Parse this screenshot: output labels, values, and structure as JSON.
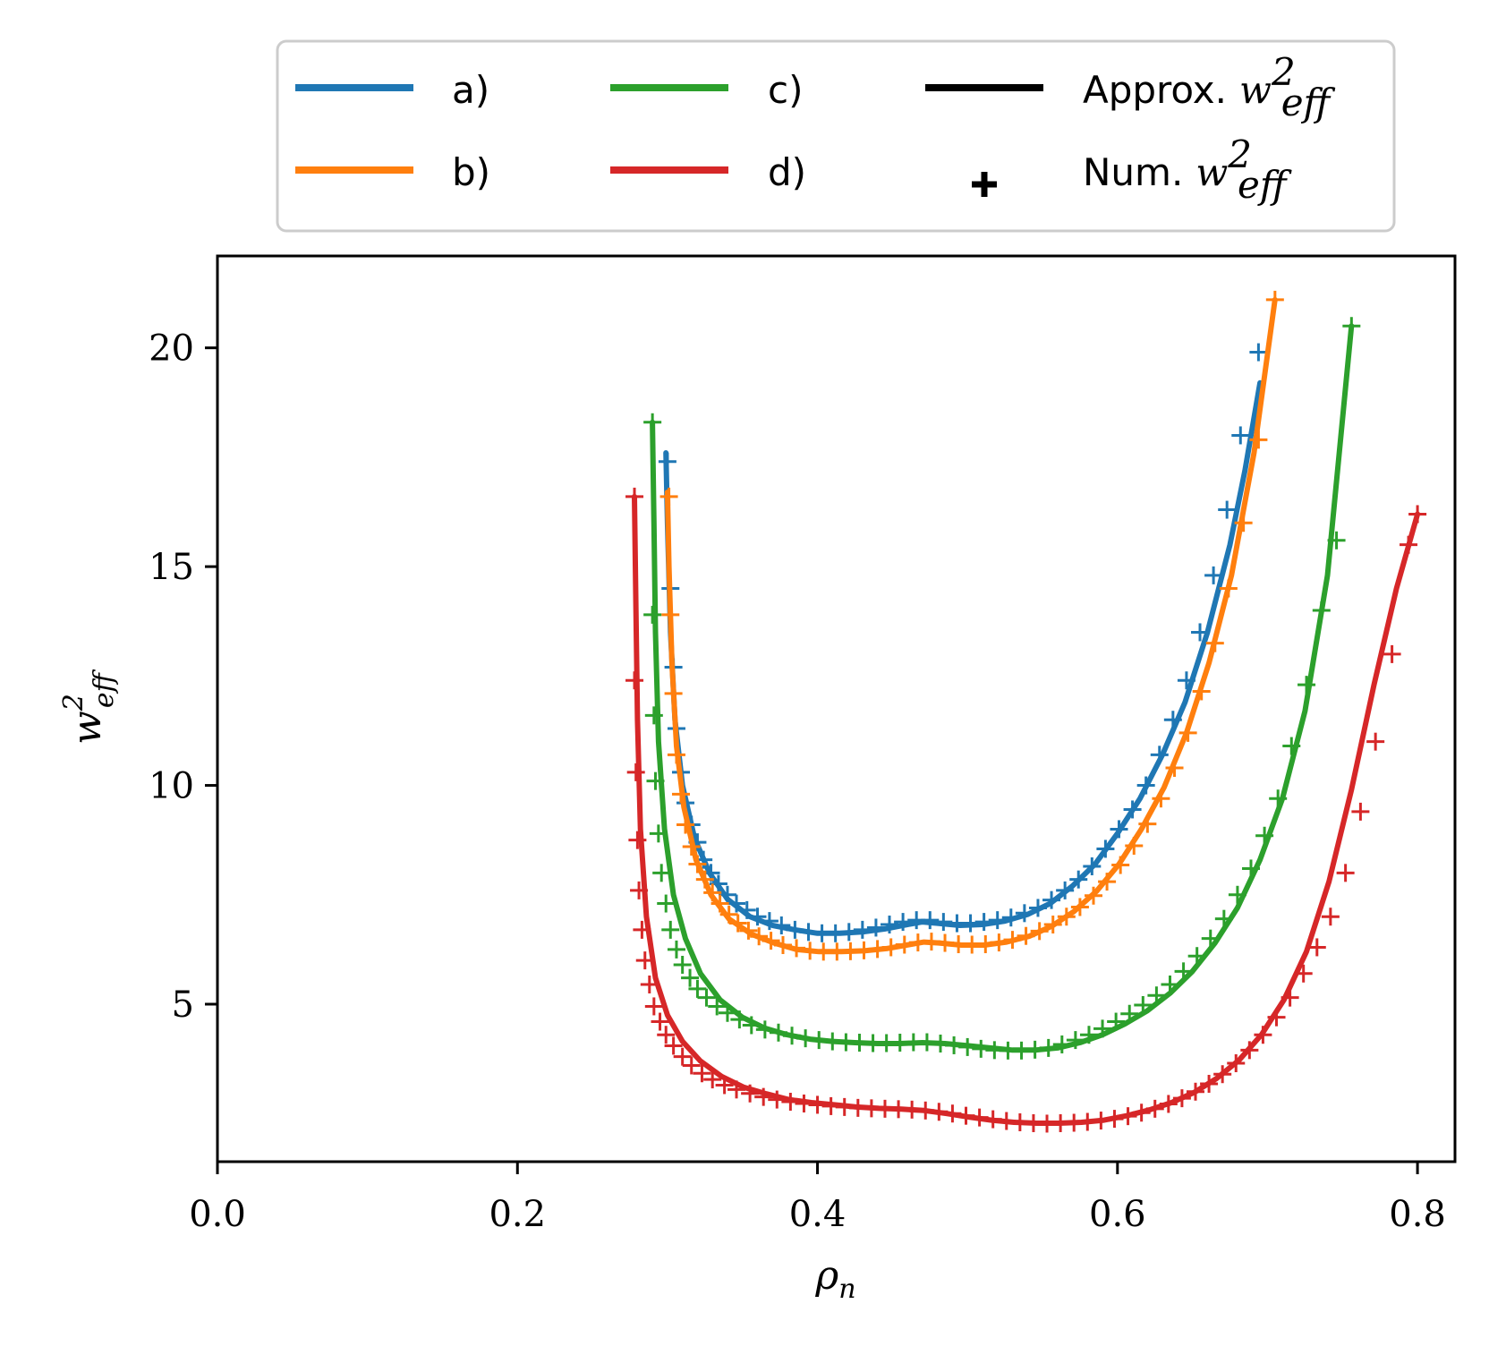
{
  "chart_data": {
    "type": "line",
    "xlabel": "ρ",
    "xlabel_sub": "n",
    "ylabel": "w",
    "ylabel_sup": "2",
    "ylabel_sub": "eff",
    "xlim": [
      0.0,
      0.825
    ],
    "ylim": [
      1.4,
      22.1
    ],
    "xticks": [
      0.0,
      0.2,
      0.4,
      0.6,
      0.8
    ],
    "xtick_labels": [
      "0.0",
      "0.2",
      "0.4",
      "0.6",
      "0.8"
    ],
    "yticks": [
      5,
      10,
      15,
      20
    ],
    "ytick_labels": [
      "5",
      "10",
      "15",
      "20"
    ],
    "grid": false,
    "legend": {
      "placement": "top-center-outside",
      "entries": [
        {
          "label": "a)",
          "color": "#1f77b4",
          "kind": "line"
        },
        {
          "label": "b)",
          "color": "#ff7f0e",
          "kind": "line"
        },
        {
          "label": "c)",
          "color": "#2ca02c",
          "kind": "line"
        },
        {
          "label": "d)",
          "color": "#d62728",
          "kind": "line"
        },
        {
          "label": "Approx.",
          "math": "w",
          "sup": "2",
          "sub": "eff",
          "color": "#000000",
          "kind": "line"
        },
        {
          "label": "Num.",
          "math": "w",
          "sup": "2",
          "sub": "eff",
          "color": "#000000",
          "kind": "marker"
        }
      ]
    },
    "series": [
      {
        "name": "a)",
        "color": "#1f77b4",
        "line": {
          "x": [
            0.299,
            0.3,
            0.302,
            0.305,
            0.31,
            0.318,
            0.328,
            0.34,
            0.355,
            0.37,
            0.385,
            0.4,
            0.415,
            0.43,
            0.445,
            0.46,
            0.47,
            0.48,
            0.495,
            0.51,
            0.525,
            0.54,
            0.555,
            0.57,
            0.585,
            0.6,
            0.615,
            0.63,
            0.645,
            0.66,
            0.675,
            0.685,
            0.695
          ],
          "y": [
            17.6,
            16.0,
            13.5,
            11.5,
            10.0,
            8.8,
            8.0,
            7.4,
            7.0,
            6.8,
            6.7,
            6.62,
            6.62,
            6.65,
            6.72,
            6.82,
            6.88,
            6.85,
            6.8,
            6.82,
            6.9,
            7.05,
            7.3,
            7.7,
            8.2,
            8.9,
            9.7,
            10.7,
            11.9,
            13.5,
            15.5,
            17.2,
            19.2
          ]
        },
        "markers": {
          "x": [
            0.3,
            0.302,
            0.304,
            0.306,
            0.309,
            0.312,
            0.316,
            0.32,
            0.324,
            0.329,
            0.334,
            0.34,
            0.346,
            0.353,
            0.36,
            0.368,
            0.376,
            0.385,
            0.394,
            0.403,
            0.412,
            0.421,
            0.43,
            0.439,
            0.448,
            0.457,
            0.466,
            0.475,
            0.484,
            0.493,
            0.502,
            0.511,
            0.52,
            0.529,
            0.538,
            0.547,
            0.556,
            0.565,
            0.574,
            0.583,
            0.592,
            0.601,
            0.61,
            0.619,
            0.628,
            0.637,
            0.646,
            0.655,
            0.664,
            0.673,
            0.682,
            0.694
          ],
          "y": [
            17.4,
            14.5,
            12.7,
            11.3,
            10.3,
            9.6,
            9.1,
            8.7,
            8.3,
            8.0,
            7.75,
            7.5,
            7.3,
            7.15,
            7.0,
            6.9,
            6.8,
            6.7,
            6.65,
            6.62,
            6.62,
            6.65,
            6.7,
            6.75,
            6.82,
            6.88,
            6.92,
            6.92,
            6.88,
            6.85,
            6.85,
            6.88,
            6.92,
            6.98,
            7.08,
            7.2,
            7.38,
            7.6,
            7.85,
            8.15,
            8.55,
            9.0,
            9.45,
            10.0,
            10.7,
            11.5,
            12.4,
            13.5,
            14.8,
            16.3,
            18.0,
            19.9
          ]
        }
      },
      {
        "name": "b)",
        "color": "#ff7f0e",
        "line": {
          "x": [
            0.3,
            0.301,
            0.303,
            0.306,
            0.311,
            0.319,
            0.329,
            0.341,
            0.356,
            0.371,
            0.386,
            0.401,
            0.416,
            0.431,
            0.446,
            0.461,
            0.471,
            0.481,
            0.496,
            0.511,
            0.526,
            0.541,
            0.556,
            0.571,
            0.586,
            0.601,
            0.616,
            0.631,
            0.646,
            0.661,
            0.676,
            0.691,
            0.705
          ],
          "y": [
            16.7,
            15.0,
            12.8,
            10.9,
            9.5,
            8.3,
            7.5,
            6.95,
            6.6,
            6.4,
            6.25,
            6.2,
            6.2,
            6.22,
            6.27,
            6.36,
            6.42,
            6.4,
            6.35,
            6.35,
            6.42,
            6.55,
            6.78,
            7.12,
            7.58,
            8.2,
            9.0,
            9.95,
            11.2,
            12.8,
            14.8,
            17.6,
            21.1
          ]
        },
        "markers": {
          "x": [
            0.301,
            0.302,
            0.304,
            0.306,
            0.309,
            0.312,
            0.316,
            0.32,
            0.325,
            0.33,
            0.335,
            0.341,
            0.347,
            0.354,
            0.361,
            0.369,
            0.377,
            0.386,
            0.395,
            0.404,
            0.413,
            0.422,
            0.431,
            0.44,
            0.449,
            0.458,
            0.467,
            0.476,
            0.485,
            0.494,
            0.503,
            0.512,
            0.521,
            0.53,
            0.539,
            0.548,
            0.557,
            0.566,
            0.575,
            0.584,
            0.593,
            0.602,
            0.611,
            0.62,
            0.629,
            0.638,
            0.647,
            0.656,
            0.665,
            0.674,
            0.684,
            0.694,
            0.705
          ],
          "y": [
            16.6,
            13.9,
            12.1,
            10.7,
            9.8,
            9.1,
            8.6,
            8.2,
            7.85,
            7.55,
            7.3,
            7.05,
            6.85,
            6.68,
            6.55,
            6.45,
            6.35,
            6.28,
            6.22,
            6.2,
            6.2,
            6.21,
            6.23,
            6.26,
            6.3,
            6.36,
            6.41,
            6.43,
            6.4,
            6.37,
            6.36,
            6.37,
            6.41,
            6.47,
            6.56,
            6.67,
            6.82,
            7.0,
            7.22,
            7.48,
            7.8,
            8.18,
            8.62,
            9.12,
            9.7,
            10.4,
            11.2,
            12.15,
            13.25,
            14.5,
            16.0,
            17.9,
            21.1
          ]
        }
      },
      {
        "name": "c)",
        "color": "#2ca02c",
        "line": {
          "x": [
            0.29,
            0.291,
            0.292,
            0.294,
            0.298,
            0.304,
            0.312,
            0.322,
            0.335,
            0.35,
            0.365,
            0.38,
            0.395,
            0.41,
            0.425,
            0.44,
            0.455,
            0.47,
            0.485,
            0.5,
            0.515,
            0.53,
            0.545,
            0.56,
            0.575,
            0.59,
            0.605,
            0.62,
            0.635,
            0.65,
            0.665,
            0.68,
            0.695,
            0.71,
            0.725,
            0.74,
            0.756
          ],
          "y": [
            18.3,
            16.0,
            13.5,
            11.0,
            9.0,
            7.5,
            6.5,
            5.7,
            5.1,
            4.7,
            4.45,
            4.3,
            4.2,
            4.15,
            4.12,
            4.1,
            4.1,
            4.12,
            4.1,
            4.05,
            4.0,
            3.95,
            3.95,
            4.0,
            4.12,
            4.3,
            4.55,
            4.85,
            5.25,
            5.75,
            6.4,
            7.2,
            8.3,
            9.7,
            11.7,
            14.8,
            20.5
          ]
        },
        "markers": {
          "x": [
            0.29,
            0.29,
            0.291,
            0.292,
            0.294,
            0.296,
            0.299,
            0.302,
            0.306,
            0.31,
            0.315,
            0.32,
            0.326,
            0.333,
            0.34,
            0.348,
            0.356,
            0.365,
            0.374,
            0.383,
            0.392,
            0.401,
            0.41,
            0.419,
            0.428,
            0.437,
            0.446,
            0.455,
            0.464,
            0.473,
            0.482,
            0.491,
            0.5,
            0.509,
            0.518,
            0.527,
            0.536,
            0.545,
            0.554,
            0.563,
            0.572,
            0.581,
            0.59,
            0.599,
            0.608,
            0.617,
            0.626,
            0.635,
            0.644,
            0.653,
            0.662,
            0.671,
            0.68,
            0.689,
            0.698,
            0.707,
            0.716,
            0.726,
            0.736,
            0.746,
            0.756
          ],
          "y": [
            18.3,
            13.9,
            11.6,
            10.1,
            8.9,
            8.0,
            7.3,
            6.7,
            6.25,
            5.9,
            5.6,
            5.35,
            5.15,
            4.95,
            4.8,
            4.65,
            4.52,
            4.42,
            4.35,
            4.28,
            4.22,
            4.18,
            4.15,
            4.13,
            4.12,
            4.11,
            4.11,
            4.12,
            4.13,
            4.13,
            4.1,
            4.06,
            4.02,
            3.98,
            3.95,
            3.94,
            3.94,
            3.96,
            4.0,
            4.08,
            4.18,
            4.3,
            4.44,
            4.6,
            4.78,
            4.98,
            5.2,
            5.45,
            5.75,
            6.1,
            6.5,
            6.95,
            7.5,
            8.1,
            8.85,
            9.7,
            10.9,
            12.3,
            14.0,
            15.6,
            20.5
          ]
        }
      },
      {
        "name": "d)",
        "color": "#d62728",
        "line": {
          "x": [
            0.278,
            0.279,
            0.28,
            0.282,
            0.286,
            0.292,
            0.3,
            0.31,
            0.322,
            0.336,
            0.351,
            0.366,
            0.381,
            0.396,
            0.411,
            0.426,
            0.441,
            0.456,
            0.471,
            0.486,
            0.501,
            0.516,
            0.531,
            0.546,
            0.561,
            0.576,
            0.591,
            0.606,
            0.621,
            0.636,
            0.651,
            0.666,
            0.681,
            0.696,
            0.711,
            0.726,
            0.741,
            0.756,
            0.771,
            0.786,
            0.8
          ],
          "y": [
            16.6,
            14.0,
            11.5,
            9.0,
            7.0,
            5.6,
            4.75,
            4.15,
            3.7,
            3.35,
            3.1,
            2.95,
            2.82,
            2.75,
            2.7,
            2.65,
            2.62,
            2.6,
            2.57,
            2.5,
            2.42,
            2.35,
            2.3,
            2.28,
            2.28,
            2.3,
            2.35,
            2.45,
            2.58,
            2.75,
            2.98,
            3.3,
            3.72,
            4.3,
            5.1,
            6.2,
            7.8,
            9.9,
            12.3,
            14.5,
            16.2
          ]
        },
        "markers": {
          "x": [
            0.278,
            0.278,
            0.279,
            0.28,
            0.281,
            0.283,
            0.285,
            0.288,
            0.291,
            0.295,
            0.299,
            0.304,
            0.31,
            0.316,
            0.323,
            0.33,
            0.338,
            0.346,
            0.355,
            0.364,
            0.373,
            0.382,
            0.391,
            0.4,
            0.409,
            0.418,
            0.427,
            0.436,
            0.445,
            0.454,
            0.463,
            0.472,
            0.481,
            0.49,
            0.499,
            0.508,
            0.517,
            0.526,
            0.535,
            0.544,
            0.553,
            0.562,
            0.571,
            0.58,
            0.589,
            0.598,
            0.607,
            0.616,
            0.625,
            0.634,
            0.643,
            0.652,
            0.661,
            0.67,
            0.679,
            0.688,
            0.697,
            0.706,
            0.715,
            0.724,
            0.733,
            0.742,
            0.752,
            0.762,
            0.772,
            0.783,
            0.794,
            0.8
          ],
          "y": [
            16.6,
            12.4,
            10.3,
            8.75,
            7.6,
            6.7,
            6.0,
            5.45,
            4.95,
            4.6,
            4.3,
            4.05,
            3.8,
            3.6,
            3.42,
            3.28,
            3.15,
            3.05,
            2.96,
            2.88,
            2.82,
            2.77,
            2.73,
            2.7,
            2.67,
            2.65,
            2.63,
            2.62,
            2.61,
            2.6,
            2.59,
            2.57,
            2.54,
            2.5,
            2.45,
            2.41,
            2.37,
            2.33,
            2.3,
            2.28,
            2.27,
            2.28,
            2.29,
            2.31,
            2.34,
            2.38,
            2.44,
            2.52,
            2.61,
            2.72,
            2.85,
            3.0,
            3.18,
            3.4,
            3.65,
            3.95,
            4.3,
            4.7,
            5.15,
            5.7,
            6.3,
            7.0,
            8.0,
            9.4,
            11.0,
            13.0,
            15.5,
            16.2
          ]
        }
      }
    ]
  }
}
